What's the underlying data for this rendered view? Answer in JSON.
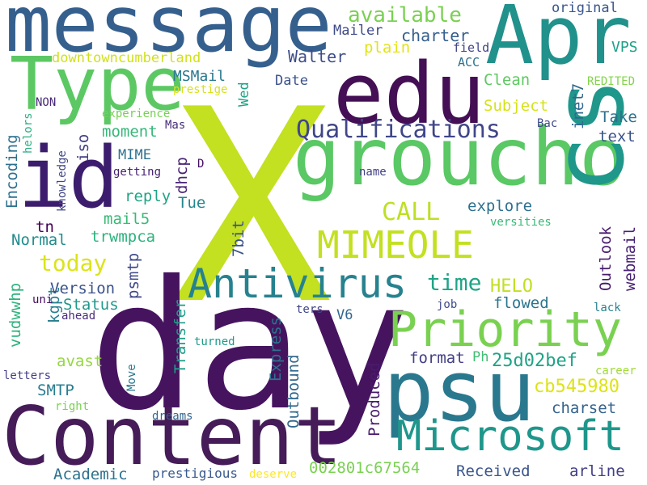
{
  "words": [
    {
      "text": "X",
      "color": "#c3e021"
    },
    {
      "text": "day",
      "color": "#46145f"
    },
    {
      "text": "groucho",
      "color": "#5ac864"
    },
    {
      "text": "edu",
      "color": "#440f54"
    },
    {
      "text": "message",
      "color": "#355f8d"
    },
    {
      "text": "Apr",
      "color": "#21918c"
    },
    {
      "text": "psu",
      "color": "#2a788e"
    },
    {
      "text": "Content",
      "color": "#451b58"
    },
    {
      "text": "id",
      "color": "#3b1c6d"
    },
    {
      "text": "Type",
      "color": "#5cc863"
    },
    {
      "text": "cs",
      "color": "#1f978b"
    },
    {
      "text": "Priority",
      "color": "#7ad151"
    },
    {
      "text": "Antivirus",
      "color": "#26828e"
    },
    {
      "text": "Microsoft",
      "color": "#1f968b"
    },
    {
      "text": "MIMEOLE",
      "color": "#c3e021"
    },
    {
      "text": "Qualifications",
      "color": "#404688"
    },
    {
      "text": "available",
      "color": "#7ad151"
    },
    {
      "text": "CALL",
      "color": "#bddf26"
    },
    {
      "text": "today",
      "color": "#dce319"
    },
    {
      "text": "time",
      "color": "#20a486"
    },
    {
      "text": "HELO",
      "color": "#c2df23"
    },
    {
      "text": "charter",
      "color": "#355f8d"
    },
    {
      "text": "Walter",
      "color": "#3e4c8a"
    },
    {
      "text": "downtowncumberland",
      "color": "#d0e11c"
    },
    {
      "text": "Mailer",
      "color": "#3e4a89"
    },
    {
      "text": "plain",
      "color": "#e2e418"
    },
    {
      "text": "original",
      "color": "#39558c"
    },
    {
      "text": "VPS",
      "color": "#1fa188"
    },
    {
      "text": "field",
      "color": "#414487"
    },
    {
      "text": "ACC",
      "color": "#2c718e"
    },
    {
      "text": "REDITED",
      "color": "#84d44b"
    },
    {
      "text": "Clean",
      "color": "#5ec962"
    },
    {
      "text": "MSMail",
      "color": "#2a788e"
    },
    {
      "text": "prestige",
      "color": "#d8e219"
    },
    {
      "text": "Date",
      "color": "#3b528b"
    },
    {
      "text": "Wed",
      "color": "#20a386"
    },
    {
      "text": "Subject",
      "color": "#d5e21a"
    },
    {
      "text": "inet7",
      "color": "#31688e"
    },
    {
      "text": "Take",
      "color": "#2c718e"
    },
    {
      "text": "text",
      "color": "#3b528b"
    },
    {
      "text": "NON",
      "color": "#482878"
    },
    {
      "text": "experience",
      "color": "#75d054"
    },
    {
      "text": "moment",
      "color": "#35b779"
    },
    {
      "text": "Mas",
      "color": "#472c7a"
    },
    {
      "text": "Bac",
      "color": "#3e4989"
    },
    {
      "text": "Encoding",
      "color": "#2d708e"
    },
    {
      "text": "iso",
      "color": "#423f85"
    },
    {
      "text": "helors",
      "color": "#29af7f"
    },
    {
      "text": "MIME",
      "color": "#2d718e"
    },
    {
      "text": "dhcp",
      "color": "#482475"
    },
    {
      "text": "D",
      "color": "#471063"
    },
    {
      "text": "knowledge",
      "color": "#3f4788"
    },
    {
      "text": "getting",
      "color": "#482071"
    },
    {
      "text": "name",
      "color": "#424086"
    },
    {
      "text": "reply",
      "color": "#20a486"
    },
    {
      "text": "Tue",
      "color": "#24868e"
    },
    {
      "text": "explore",
      "color": "#2d708e"
    },
    {
      "text": "tn",
      "color": "#440154"
    },
    {
      "text": "mail5",
      "color": "#3aba76"
    },
    {
      "text": "trwmpca",
      "color": "#2db27d"
    },
    {
      "text": "Normal",
      "color": "#228c8d"
    },
    {
      "text": "Outlook",
      "color": "#481a6c"
    },
    {
      "text": "webmail",
      "color": "#482173"
    },
    {
      "text": "versities",
      "color": "#38b977"
    },
    {
      "text": "7bit",
      "color": "#3b528b"
    },
    {
      "text": "psmtp",
      "color": "#3f4889"
    },
    {
      "text": "vudwwhp",
      "color": "#2db27d"
    },
    {
      "text": "kgpt",
      "color": "#277f8e"
    },
    {
      "text": "Version",
      "color": "#3b528b"
    },
    {
      "text": "Status",
      "color": "#1f988b"
    },
    {
      "text": "flowed",
      "color": "#2b758e"
    },
    {
      "text": "uni",
      "color": "#460b5e"
    },
    {
      "text": "ahead",
      "color": "#472d7b"
    },
    {
      "text": "V6",
      "color": "#32658e"
    },
    {
      "text": "ters",
      "color": "#404588"
    },
    {
      "text": "job",
      "color": "#3e4989"
    },
    {
      "text": "lack",
      "color": "#26828e"
    },
    {
      "text": "Transfer",
      "color": "#1f9e89"
    },
    {
      "text": "avast",
      "color": "#95d840"
    },
    {
      "text": "turned",
      "color": "#1e9b8a"
    },
    {
      "text": "Express",
      "color": "#2c728e"
    },
    {
      "text": "format",
      "color": "#433e85"
    },
    {
      "text": "Ph",
      "color": "#40bd72"
    },
    {
      "text": "25d02bef",
      "color": "#20a386"
    },
    {
      "text": "career",
      "color": "#a0da39"
    },
    {
      "text": "letters",
      "color": "#433e85"
    },
    {
      "text": "Move",
      "color": "#2a778e"
    },
    {
      "text": "SMTP",
      "color": "#287c8e"
    },
    {
      "text": "Outbound",
      "color": "#30698e"
    },
    {
      "text": "Produced",
      "color": "#481b6d"
    },
    {
      "text": "cb545980",
      "color": "#dde318"
    },
    {
      "text": "charset",
      "color": "#33628d"
    },
    {
      "text": "right",
      "color": "#7ad151"
    },
    {
      "text": "dreams",
      "color": "#32658e"
    },
    {
      "text": "002801c67564",
      "color": "#7ad151"
    },
    {
      "text": "Received",
      "color": "#3a548c"
    },
    {
      "text": "Academic",
      "color": "#2c728e"
    },
    {
      "text": "arline",
      "color": "#424086"
    },
    {
      "text": "prestigious",
      "color": "#38598c"
    },
    {
      "text": "deserve",
      "color": "#fde725"
    }
  ]
}
